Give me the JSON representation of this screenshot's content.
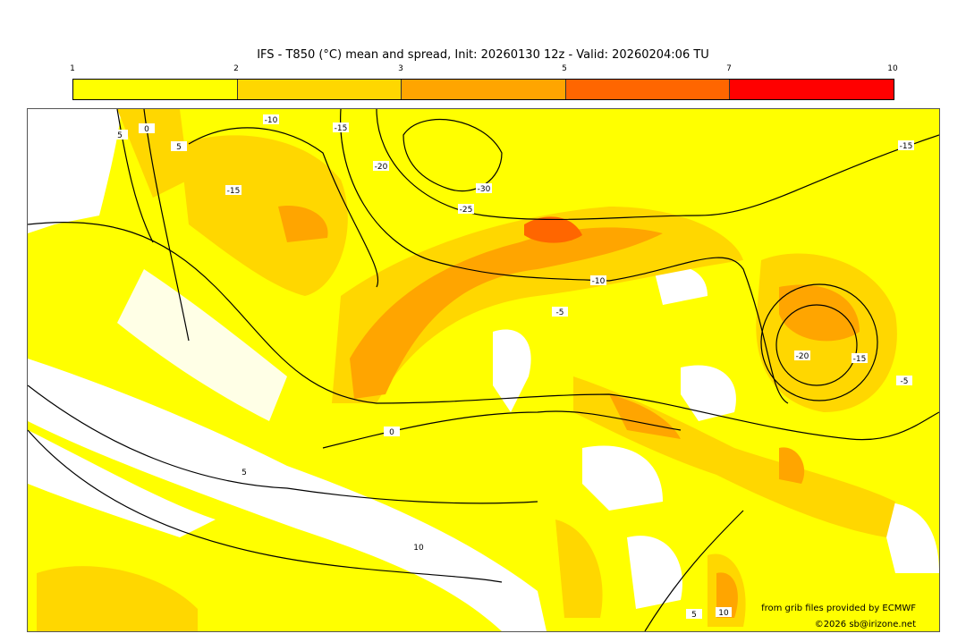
{
  "title": "IFS - T850 (°C) mean and spread, Init: 20260130 12z - Valid: 20260204:06 TU",
  "colorbar": {
    "ticks": [
      "1",
      "2",
      "3",
      "5",
      "7",
      "10"
    ],
    "colors": [
      "#ffff00",
      "#ffd700",
      "#ffa500",
      "#ff6600",
      "#ff0000"
    ]
  },
  "map": {
    "background": "#ffff00",
    "contour_labels": [
      "5",
      "0",
      "5",
      "-10",
      "-15",
      "-20",
      "-30",
      "-25",
      "-15",
      "-10",
      "-5",
      "-15",
      "0",
      "5",
      "10",
      "-20",
      "-15",
      "-5",
      "5",
      "10"
    ]
  },
  "credits": {
    "source": "from grib files provided by ECMWF",
    "copyright": "©2026 sb@irizone.net"
  }
}
